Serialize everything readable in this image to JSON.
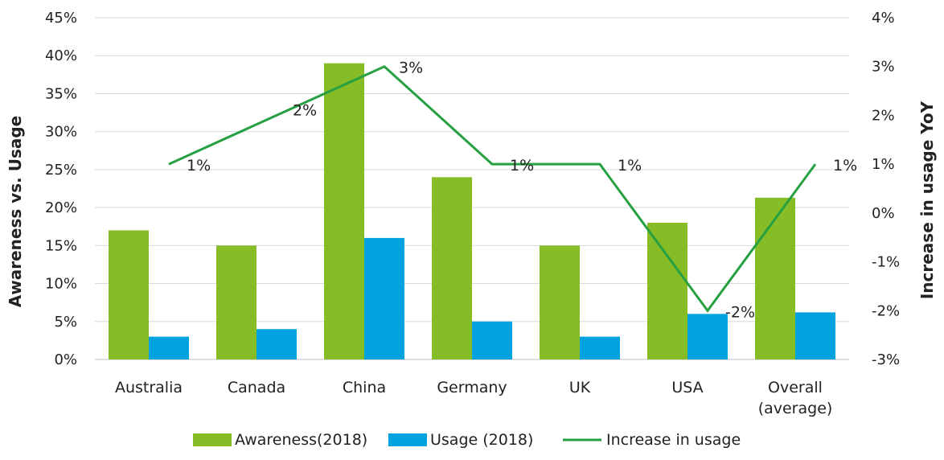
{
  "chart_data": {
    "type": "bar",
    "categories": [
      "Australia",
      "Canada",
      "China",
      "Germany",
      "UK",
      "USA",
      "Overall (average)"
    ],
    "category_lines": [
      [
        "Australia"
      ],
      [
        "Canada"
      ],
      [
        "China"
      ],
      [
        "Germany"
      ],
      [
        "UK"
      ],
      [
        "USA"
      ],
      [
        "Overall",
        "(average)"
      ]
    ],
    "series": [
      {
        "name": "Awareness(2018)",
        "kind": "bar",
        "axis": "left",
        "color": "#86BC25",
        "values": [
          17,
          15,
          39,
          24,
          15,
          18,
          21.3
        ]
      },
      {
        "name": "Usage (2018)",
        "kind": "bar",
        "axis": "left",
        "color": "#00A3E0",
        "values": [
          3,
          4,
          16,
          5,
          3,
          6,
          6.2
        ]
      },
      {
        "name": "Increase in usage",
        "kind": "line",
        "axis": "right",
        "color": "#26A041",
        "values": [
          1,
          2,
          3,
          1,
          1,
          -2,
          1
        ],
        "labels": [
          "1%",
          "2%",
          "3%",
          "1%",
          "1%",
          "-2%",
          "1%"
        ]
      }
    ],
    "ylabel": "Awareness vs. Usage",
    "ylabel_right": "Increase in usage YoY",
    "ylim": [
      0,
      45
    ],
    "ylim_right": [
      -3,
      4
    ],
    "yticks": [
      "0%",
      "5%",
      "10%",
      "15%",
      "20%",
      "25%",
      "30%",
      "35%",
      "40%",
      "45%"
    ],
    "yticks_right": [
      "-3%",
      "-2%",
      "-1%",
      "0%",
      "1%",
      "2%",
      "3%",
      "4%"
    ],
    "grid": true,
    "legend": "bottom-center"
  }
}
